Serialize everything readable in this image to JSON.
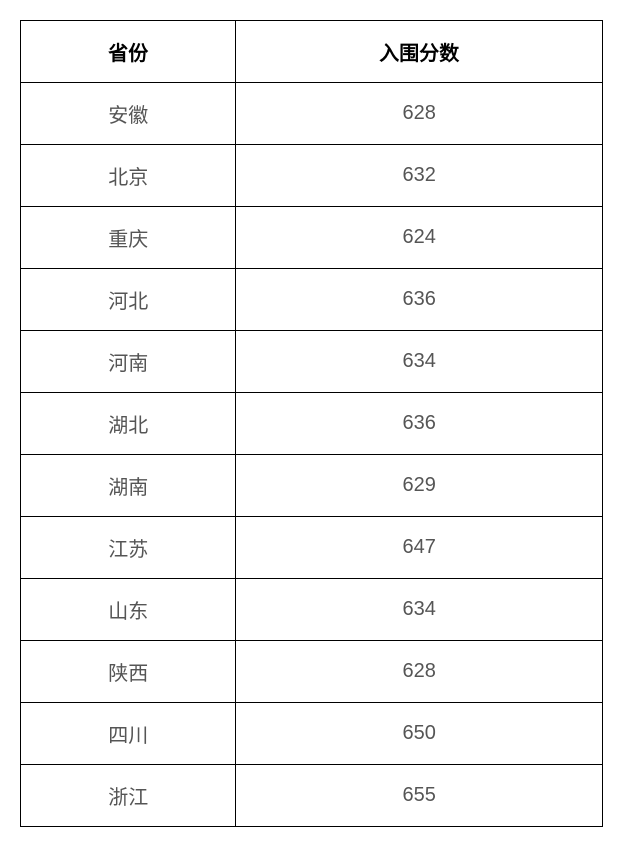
{
  "table": {
    "type": "table",
    "columns": [
      {
        "header": "省份",
        "align": "center",
        "width": "50%"
      },
      {
        "header": "入围分数",
        "align": "center",
        "width": "50%"
      }
    ],
    "rows": [
      [
        "安徽",
        "628"
      ],
      [
        "北京",
        "632"
      ],
      [
        "重庆",
        "624"
      ],
      [
        "河北",
        "636"
      ],
      [
        "河南",
        "634"
      ],
      [
        "湖北",
        "636"
      ],
      [
        "湖南",
        "629"
      ],
      [
        "江苏",
        "647"
      ],
      [
        "山东",
        "634"
      ],
      [
        "陕西",
        "628"
      ],
      [
        "四川",
        "650"
      ],
      [
        "浙江",
        "655"
      ]
    ],
    "styling": {
      "border_color": "#000000",
      "border_width": 1,
      "header_font_weight": "bold",
      "header_color": "#000000",
      "cell_color": "#555555",
      "font_size": 20,
      "cell_padding": "16px 8px",
      "background_color": "#ffffff",
      "text_align": "center"
    }
  }
}
